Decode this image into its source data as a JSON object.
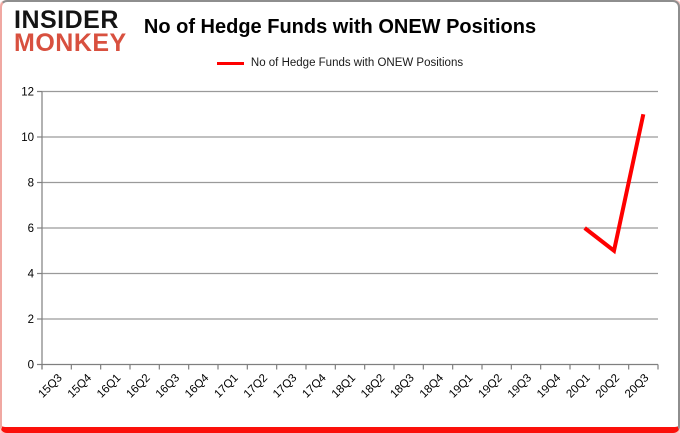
{
  "logo": {
    "line1": "INSIDER",
    "line2": "MONKEY"
  },
  "colors": {
    "series_line": "#fe0000",
    "grid": "#9a9a9a",
    "axis": "#7f7f7f",
    "tick_label": "#000000",
    "logo_insider": "#141414",
    "logo_monkey": "#d8503f",
    "card_bottom_border": "#fb100b"
  },
  "chart_data": {
    "type": "line",
    "title": "No of Hedge Funds with ONEW Positions",
    "legend_label": "No of Hedge Funds with ONEW Positions",
    "legend_position": "top",
    "xlabel": "",
    "ylabel": "",
    "grid": "horizontal",
    "ylim": [
      0,
      12
    ],
    "ytick_step": 2,
    "yticks": [
      0,
      2,
      4,
      6,
      8,
      10,
      12
    ],
    "categories": [
      "15Q3",
      "15Q4",
      "16Q1",
      "16Q2",
      "16Q3",
      "16Q4",
      "17Q1",
      "17Q2",
      "17Q3",
      "17Q4",
      "18Q1",
      "18Q2",
      "18Q3",
      "18Q4",
      "19Q1",
      "19Q2",
      "19Q3",
      "19Q4",
      "20Q1",
      "20Q2",
      "20Q3"
    ],
    "series": [
      {
        "name": "No of Hedge Funds with ONEW Positions",
        "color": "#fe0000",
        "values": [
          null,
          null,
          null,
          null,
          null,
          null,
          null,
          null,
          null,
          null,
          null,
          null,
          null,
          null,
          null,
          null,
          null,
          null,
          6,
          5,
          11
        ]
      }
    ]
  }
}
